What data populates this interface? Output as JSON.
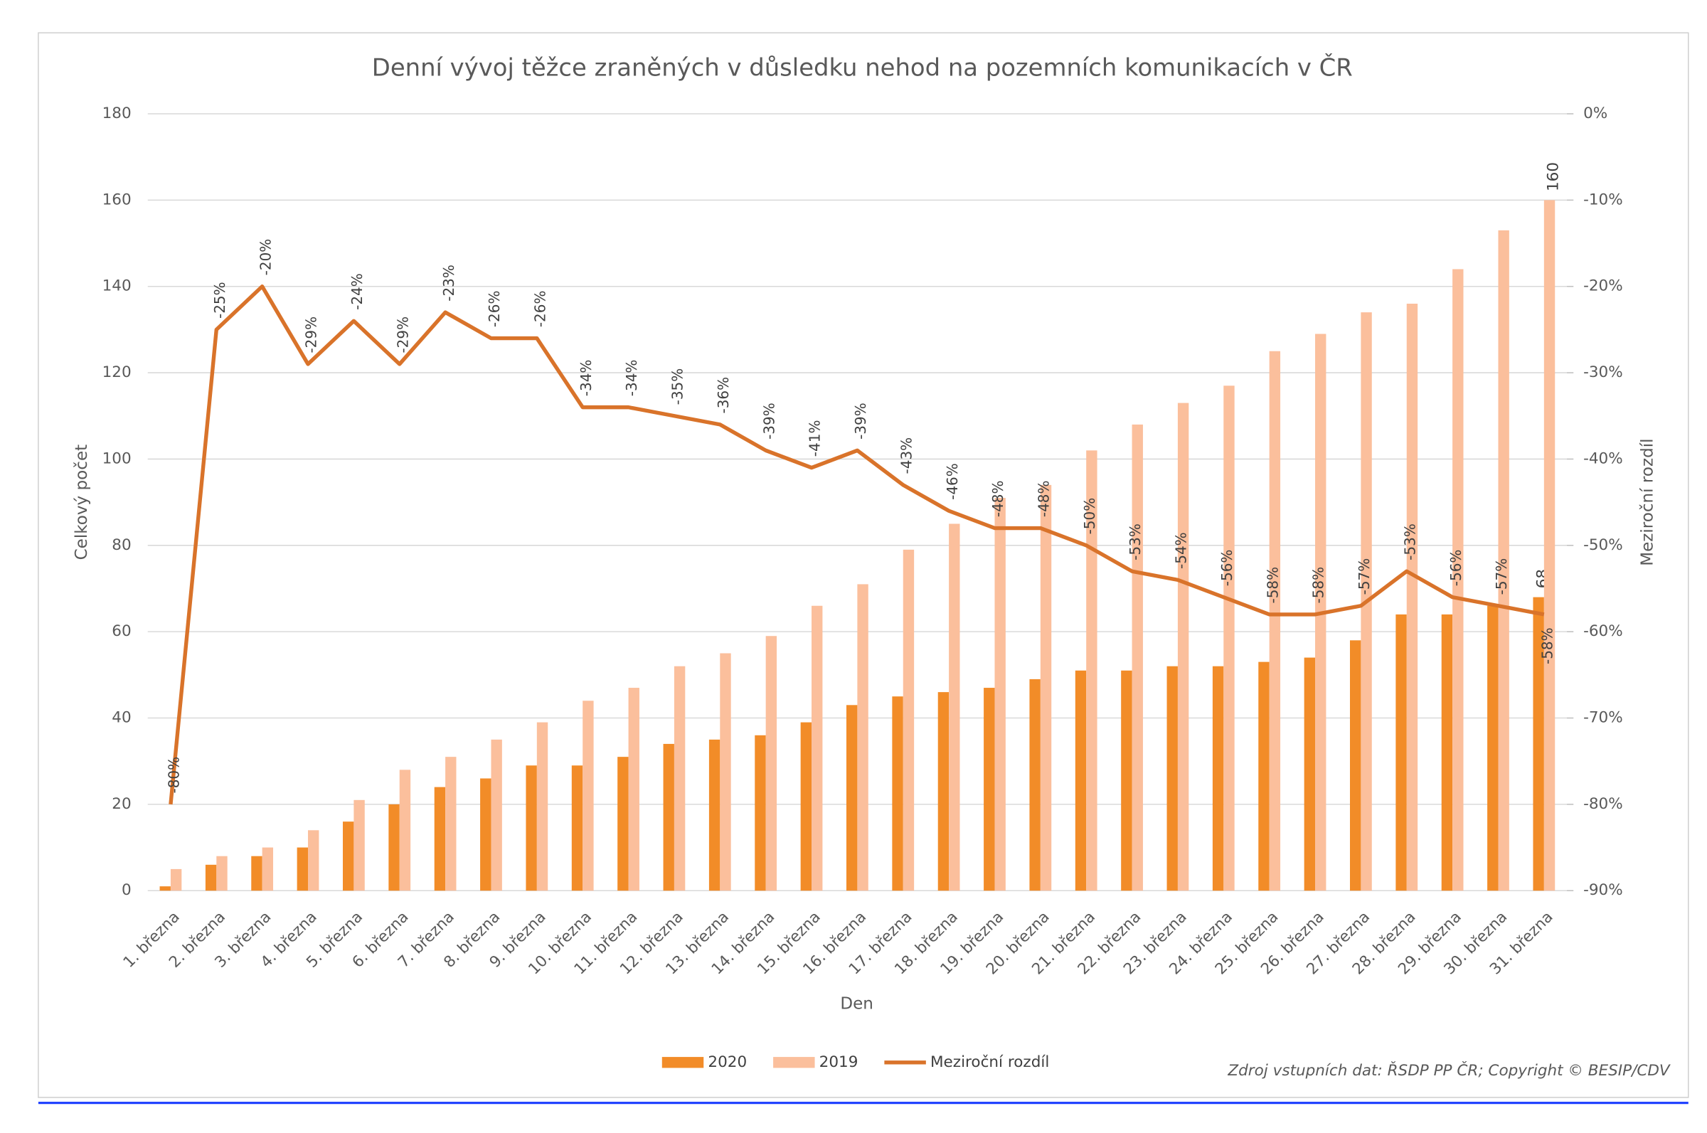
{
  "chart_data": {
    "type": "bar-line",
    "title": "Denní vývoj těžce zraněných v důsledku nehod na pozemních komunikacích v ČR",
    "x_label": "Den",
    "y_label": "Celkový počet",
    "y2_label": "Meziroční rozdíl",
    "source": "Zdroj vstupních dat: ŘSDP PP ČR; Copyright © BESIP/CDV",
    "categories": [
      "1. března",
      "2. března",
      "3. března",
      "4. března",
      "5. března",
      "6. března",
      "7. března",
      "8. března",
      "9. března",
      "10. března",
      "11. března",
      "12. března",
      "13. března",
      "14. března",
      "15. března",
      "16. března",
      "17. března",
      "18. března",
      "19. března",
      "20. března",
      "21. března",
      "22. března",
      "23. března",
      "24. března",
      "25. března",
      "26. března",
      "27. března",
      "28. března",
      "29. března",
      "30. března",
      "31. března"
    ],
    "series": [
      {
        "name": "2020",
        "type": "bar",
        "color": "#f28c28",
        "values": [
          1,
          6,
          8,
          10,
          16,
          20,
          24,
          26,
          29,
          29,
          31,
          34,
          35,
          36,
          39,
          43,
          45,
          46,
          47,
          49,
          51,
          51,
          52,
          52,
          53,
          54,
          58,
          64,
          64,
          66,
          68
        ],
        "value_labels": [
          null,
          null,
          null,
          null,
          null,
          null,
          null,
          null,
          null,
          null,
          null,
          null,
          null,
          null,
          null,
          null,
          null,
          null,
          null,
          null,
          null,
          null,
          null,
          null,
          null,
          null,
          null,
          null,
          null,
          null,
          "68"
        ]
      },
      {
        "name": "2019",
        "type": "bar",
        "color": "#fbbf9c",
        "values": [
          5,
          8,
          10,
          14,
          21,
          28,
          31,
          35,
          39,
          44,
          47,
          52,
          55,
          59,
          66,
          71,
          79,
          85,
          91,
          94,
          102,
          108,
          113,
          117,
          125,
          129,
          134,
          136,
          144,
          153,
          160
        ],
        "value_labels": [
          null,
          null,
          null,
          null,
          null,
          null,
          null,
          null,
          null,
          null,
          null,
          null,
          null,
          null,
          null,
          null,
          null,
          null,
          null,
          null,
          null,
          null,
          null,
          null,
          null,
          null,
          null,
          null,
          null,
          null,
          "160"
        ]
      },
      {
        "name": "Meziroční rozdíl",
        "type": "line",
        "axis": "y2",
        "color": "#d9732a",
        "values": [
          -80,
          -25,
          -20,
          -29,
          -24,
          -29,
          -23,
          -26,
          -26,
          -34,
          -34,
          -35,
          -36,
          -39,
          -41,
          -39,
          -43,
          -46,
          -48,
          -48,
          -50,
          -53,
          -54,
          -56,
          -58,
          -58,
          -57,
          -53,
          -56,
          -57,
          -58
        ],
        "value_labels": [
          "-80%",
          "-25%",
          "-20%",
          "-29%",
          "-24%",
          "-29%",
          "-23%",
          "-26%",
          "-26%",
          "-34%",
          "-34%",
          "-35%",
          "-36%",
          "-39%",
          "-41%",
          "-39%",
          "-43%",
          "-46%",
          "-48%",
          "-48%",
          "-50%",
          "-53%",
          "-54%",
          "-56%",
          "-58%",
          "-58%",
          "-57%",
          "-53%",
          "-56%",
          "-57%",
          "-58%"
        ]
      }
    ],
    "ylim": [
      0,
      180
    ],
    "yticks": [
      0,
      20,
      40,
      60,
      80,
      100,
      120,
      140,
      160,
      180
    ],
    "y2lim": [
      -90,
      0
    ],
    "y2ticks": [
      {
        "value": 0,
        "label": "0%"
      },
      {
        "value": -10,
        "label": "-10%"
      },
      {
        "value": -20,
        "label": "-20%"
      },
      {
        "value": -30,
        "label": "-30%"
      },
      {
        "value": -40,
        "label": "-40%"
      },
      {
        "value": -50,
        "label": "-50%"
      },
      {
        "value": -60,
        "label": "-60%"
      },
      {
        "value": -70,
        "label": "-70%"
      },
      {
        "value": -80,
        "label": "-80%"
      },
      {
        "value": -90,
        "label": "-90%"
      }
    ],
    "grid": true,
    "legend": "bottom"
  }
}
